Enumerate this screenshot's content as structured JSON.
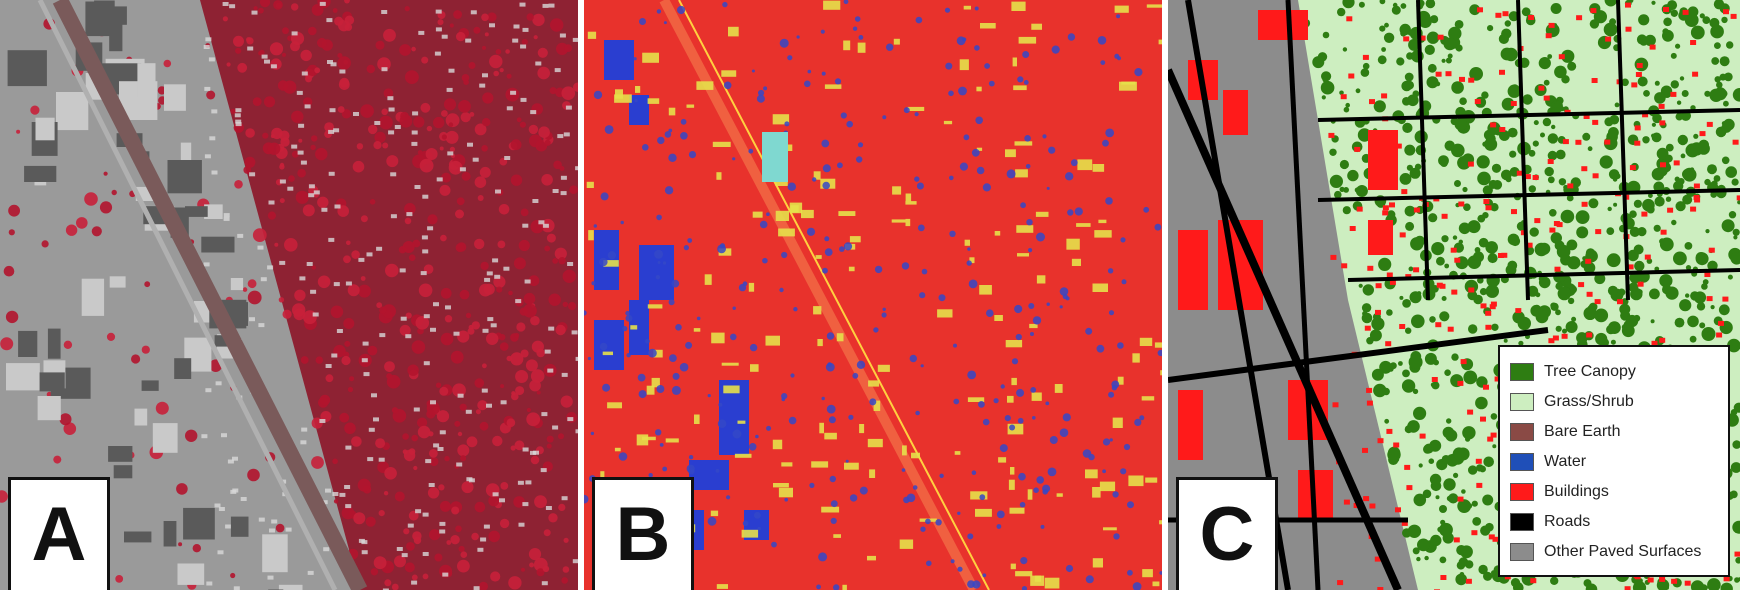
{
  "panels": [
    {
      "id": "A",
      "letter": "A"
    },
    {
      "id": "B",
      "letter": "B"
    },
    {
      "id": "C",
      "letter": "C"
    }
  ],
  "legend": {
    "items": [
      {
        "label": "Tree Canopy",
        "color": "#2e7d12"
      },
      {
        "label": "Grass/Shrub",
        "color": "#cdeec0"
      },
      {
        "label": "Bare Earth",
        "color": "#8a4a45"
      },
      {
        "label": "Water",
        "color": "#1f4fb8"
      },
      {
        "label": "Buildings",
        "color": "#ff1a1a"
      },
      {
        "label": "Roads",
        "color": "#000000"
      },
      {
        "label": "Other Paved Surfaces",
        "color": "#8c8c8c"
      }
    ]
  },
  "colors": {
    "infrared_vegetation": "#b3142e",
    "infrared_urban": "#9a9a9a",
    "lidar_ground": "#e8322c",
    "lidar_high": "#2a3ed0",
    "lidar_mid": "#e6e04a",
    "landcover_paved": "#8c8c8c"
  }
}
